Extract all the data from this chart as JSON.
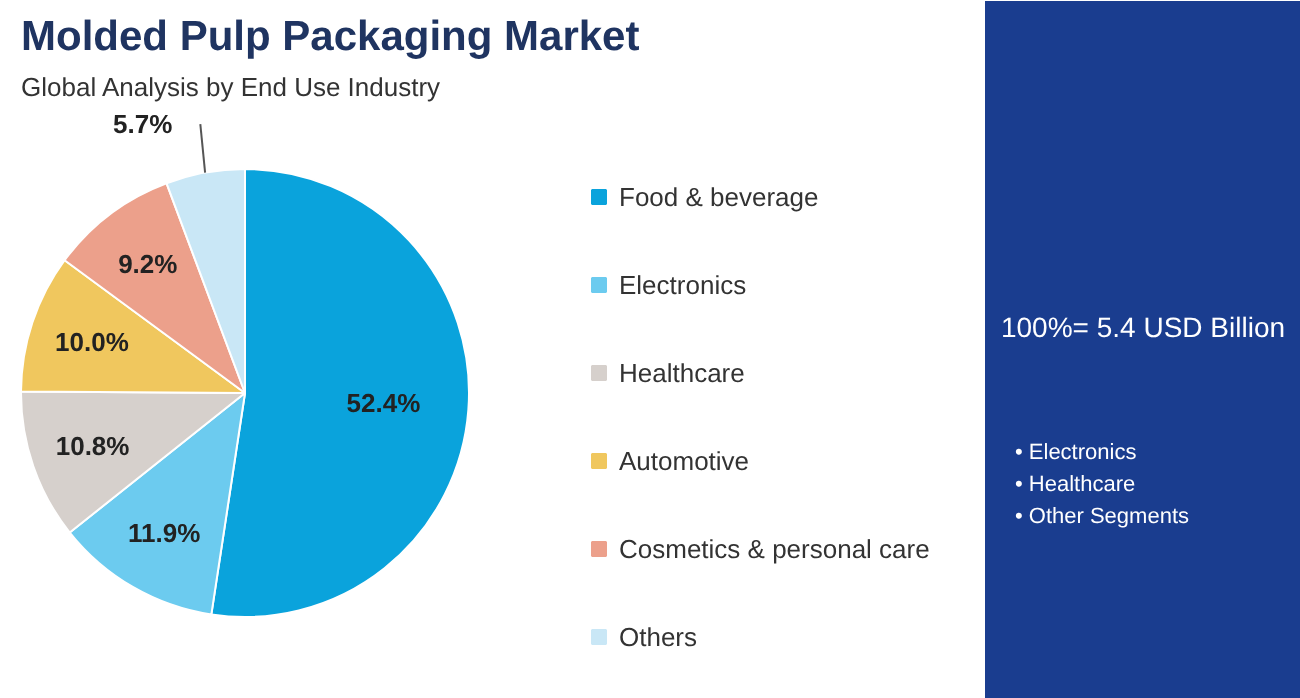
{
  "chart_data": {
    "type": "pie",
    "title": "Molded Pulp Packaging Market",
    "subtitle": "Global Analysis by End Use Industry",
    "categories": [
      "Food & beverage",
      "Electronics",
      "Healthcare",
      "Automotive",
      "Cosmetics & personal care",
      "Others"
    ],
    "values": [
      52.4,
      11.9,
      10.8,
      10.0,
      9.2,
      5.7
    ],
    "value_labels": [
      "52.4%",
      "11.9%",
      "10.8%",
      "10.0%",
      "9.2%",
      "5.7%"
    ],
    "colors": [
      "#0aa3dc",
      "#6ccbef",
      "#d6d0cc",
      "#f0c75e",
      "#eca08b",
      "#c9e7f6"
    ],
    "legend": "right",
    "annotations": [
      "100%= 5.4 USD Billion",
      "• Electronics",
      "• Healthcare",
      "• Other Segments"
    ]
  }
}
